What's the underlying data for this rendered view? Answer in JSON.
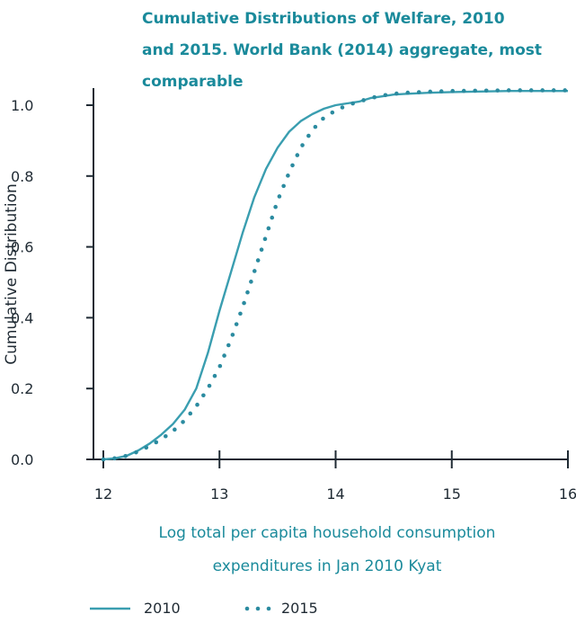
{
  "chart_data": {
    "type": "line",
    "title_lines": [
      "Cumulative Distributions of Welfare, 2010",
      "and 2015. World Bank (2014) aggregate, most",
      "comparable"
    ],
    "xlabel_lines": [
      "Log total per capita household consumption",
      "expenditures in Jan 2010 Kyat"
    ],
    "ylabel": "Cumulative Distribution",
    "x_ticks": [
      "12",
      "13",
      "14",
      "15",
      "16"
    ],
    "y_ticks": [
      "0.0",
      "0.2",
      "0.4",
      "0.6",
      "0.8",
      "1.0"
    ],
    "xlim": [
      12,
      16
    ],
    "ylim": [
      0,
      1
    ],
    "grid": false,
    "legend_position": "bottom-left",
    "series": [
      {
        "name": "2010",
        "style": "solid",
        "color": "#3a9eb0",
        "points": [
          [
            12.0,
            0.0
          ],
          [
            12.1,
            0.003
          ],
          [
            12.2,
            0.01
          ],
          [
            12.3,
            0.025
          ],
          [
            12.4,
            0.045
          ],
          [
            12.5,
            0.07
          ],
          [
            12.6,
            0.1
          ],
          [
            12.7,
            0.14
          ],
          [
            12.8,
            0.2
          ],
          [
            12.9,
            0.3
          ],
          [
            13.0,
            0.42
          ],
          [
            13.1,
            0.53
          ],
          [
            13.2,
            0.64
          ],
          [
            13.3,
            0.74
          ],
          [
            13.4,
            0.82
          ],
          [
            13.5,
            0.88
          ],
          [
            13.6,
            0.925
          ],
          [
            13.7,
            0.955
          ],
          [
            13.8,
            0.975
          ],
          [
            13.9,
            0.99
          ],
          [
            14.0,
            1.0
          ],
          [
            14.1,
            1.005
          ],
          [
            14.2,
            1.01
          ],
          [
            14.3,
            1.02
          ],
          [
            14.4,
            1.025
          ],
          [
            14.5,
            1.03
          ],
          [
            14.6,
            1.032
          ],
          [
            14.8,
            1.035
          ],
          [
            15.0,
            1.037
          ],
          [
            15.5,
            1.04
          ],
          [
            16.0,
            1.04
          ]
        ]
      },
      {
        "name": "2015",
        "style": "dotted",
        "color": "#2b8ba0",
        "points": [
          [
            12.0,
            0.0
          ],
          [
            12.1,
            0.003
          ],
          [
            12.2,
            0.01
          ],
          [
            12.3,
            0.022
          ],
          [
            12.4,
            0.038
          ],
          [
            12.5,
            0.057
          ],
          [
            12.6,
            0.08
          ],
          [
            12.7,
            0.11
          ],
          [
            12.8,
            0.15
          ],
          [
            12.9,
            0.2
          ],
          [
            13.0,
            0.26
          ],
          [
            13.1,
            0.34
          ],
          [
            13.2,
            0.43
          ],
          [
            13.3,
            0.53
          ],
          [
            13.4,
            0.63
          ],
          [
            13.5,
            0.73
          ],
          [
            13.6,
            0.81
          ],
          [
            13.7,
            0.88
          ],
          [
            13.8,
            0.93
          ],
          [
            13.9,
            0.965
          ],
          [
            14.0,
            0.985
          ],
          [
            14.1,
            1.0
          ],
          [
            14.2,
            1.01
          ],
          [
            14.3,
            1.02
          ],
          [
            14.4,
            1.027
          ],
          [
            14.5,
            1.032
          ],
          [
            14.6,
            1.035
          ],
          [
            14.8,
            1.038
          ],
          [
            15.0,
            1.04
          ],
          [
            15.5,
            1.042
          ],
          [
            16.0,
            1.042
          ]
        ]
      }
    ]
  }
}
